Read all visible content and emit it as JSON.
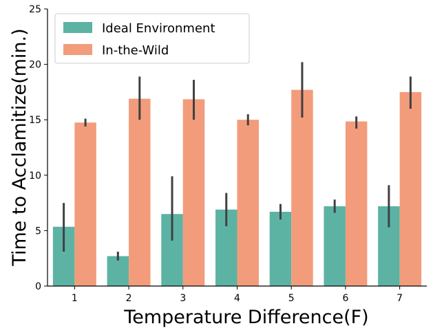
{
  "chart_data": {
    "type": "bar",
    "xlabel": "Temperature Difference(F)",
    "ylabel": "Time to Acclamitize(min.)",
    "categories": [
      "1",
      "2",
      "3",
      "4",
      "5",
      "6",
      "7"
    ],
    "ylim": [
      0,
      25
    ],
    "yticks": [
      "0",
      "5",
      "10",
      "15",
      "20",
      "25"
    ],
    "grid": false,
    "legend_position": "top-left",
    "series": [
      {
        "name": "Ideal Environment",
        "color": "#5cb3a4",
        "values": [
          5.35,
          2.7,
          6.5,
          6.9,
          6.7,
          7.2,
          7.2
        ],
        "err_low": [
          3.1,
          2.3,
          4.1,
          5.4,
          6.0,
          6.6,
          5.3
        ],
        "err_high": [
          7.5,
          3.1,
          9.9,
          8.4,
          7.4,
          7.8,
          9.1
        ]
      },
      {
        "name": "In-the-Wild",
        "color": "#f29c7c",
        "values": [
          14.75,
          16.9,
          16.85,
          15.0,
          17.7,
          14.85,
          17.5
        ],
        "err_low": [
          14.4,
          15.0,
          15.0,
          14.5,
          15.2,
          14.2,
          16.0
        ],
        "err_high": [
          15.1,
          18.9,
          18.6,
          15.5,
          20.2,
          15.3,
          18.9
        ]
      }
    ]
  }
}
